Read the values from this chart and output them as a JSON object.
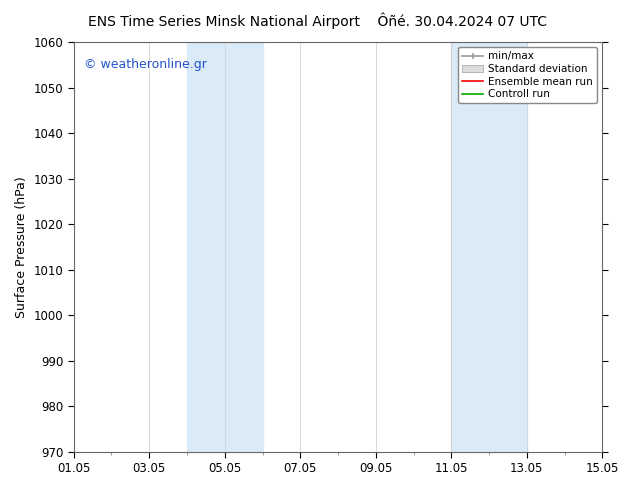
{
  "title_left": "ENS Time Series Minsk National Airport",
  "title_right": "Ôñé. 30.04.2024 07 UTC",
  "ylabel": "Surface Pressure (hPa)",
  "ylim": [
    970,
    1060
  ],
  "yticks": [
    970,
    980,
    990,
    1000,
    1010,
    1020,
    1030,
    1040,
    1050,
    1060
  ],
  "xtick_labels": [
    "01.05",
    "03.05",
    "05.05",
    "07.05",
    "09.05",
    "11.05",
    "13.05",
    "15.05"
  ],
  "xtick_positions": [
    1,
    3,
    5,
    7,
    9,
    11,
    13,
    15
  ],
  "watermark": "© weatheronline.gr",
  "bg_color": "#ffffff",
  "plot_bg_color": "#ffffff",
  "grid_color": "#cccccc",
  "band_color": "#daeaf7",
  "band1_x_start": 4.0,
  "band1_x_end": 6.0,
  "band2_x_start": 11.0,
  "band2_x_end": 13.0,
  "legend_items": [
    "min/max",
    "Standard deviation",
    "Ensemble mean run",
    "Controll run"
  ],
  "legend_colors_line": [
    "#999999",
    "#cccccc",
    "#ff0000",
    "#00aa00"
  ],
  "title_fontsize": 10,
  "axis_label_fontsize": 9,
  "tick_fontsize": 8.5,
  "watermark_fontsize": 9,
  "legend_fontsize": 7.5,
  "x_start": 1.0,
  "x_end": 15.0
}
